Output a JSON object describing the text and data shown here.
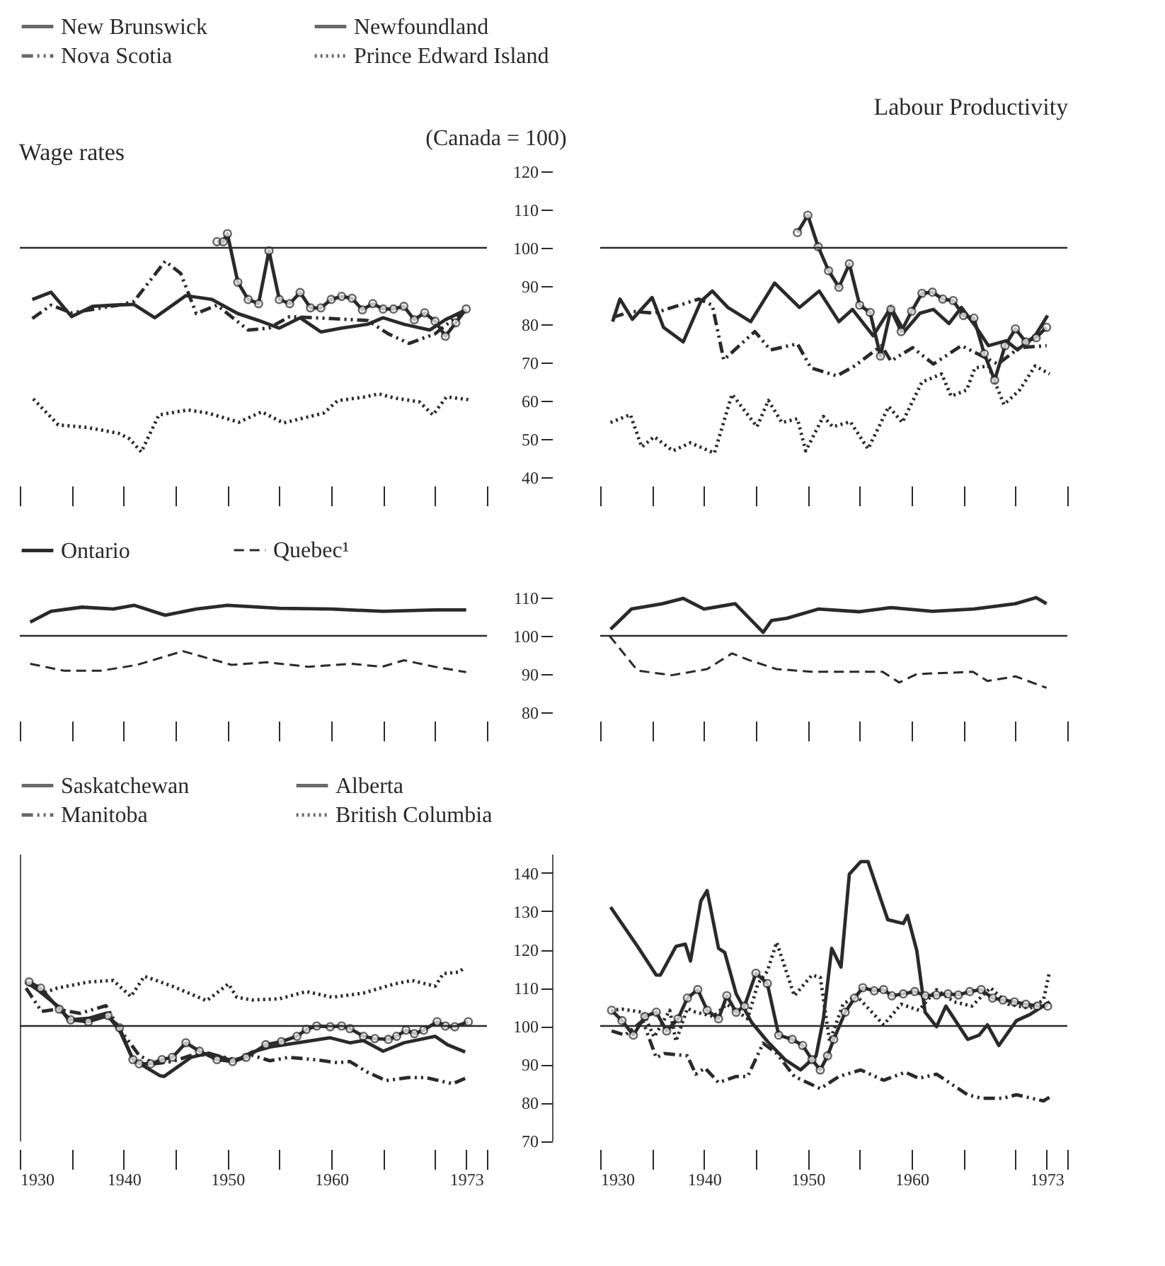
{
  "chart_data": [
    {
      "type": "line",
      "title": "Wage rates",
      "xlim": [
        1930,
        1975
      ],
      "ylim": [
        40,
        120
      ],
      "legend": "top",
      "tick_labels": false,
      "xticks": [
        1930,
        {
          "value": 1935,
          "label": null
        },
        1940,
        {
          "value": 1945,
          "label": null
        },
        1950,
        {
          "value": 1955,
          "label": null
        },
        1960,
        {
          "value": 1965,
          "label": null
        },
        {
          "value": 1970,
          "label": null
        },
        {
          "value": 1975,
          "label": null
        }
      ],
      "yticks": [
        40,
        50,
        60,
        70,
        80,
        90,
        100,
        110,
        120
      ],
      "ref_lines": [
        {
          "axis": "y",
          "value": 100
        }
      ],
      "series": [
        {
          "name": "New Brunswick",
          "color": "#2a2a2a",
          "line_style": "solid",
          "x": [
            1931.2,
            1933,
            1935,
            1937,
            1939,
            1941,
            1943,
            1946,
            1948.5,
            1951,
            1953,
            1955,
            1957,
            1959,
            1961,
            1963.5,
            1965,
            1967,
            1969.5,
            1971,
            1973
          ],
          "values": [
            86.5,
            88.4,
            82,
            84.7,
            85,
            85.2,
            81.7,
            87.5,
            86.5,
            82.8,
            81,
            79,
            81.7,
            78,
            79,
            80,
            81.7,
            80,
            78.5,
            81.2,
            83.8
          ]
        },
        {
          "name": "Newfoundland",
          "color": "#2a2a2a",
          "line_style": "solid",
          "marker": "circle",
          "x": [
            1949,
            1949.6,
            1950,
            1951,
            1952,
            1953,
            1954,
            1955,
            1956,
            1957,
            1958,
            1959,
            1960,
            1961,
            1962,
            1963,
            1964,
            1965,
            1966,
            1967,
            1968,
            1969,
            1970,
            1971,
            1972,
            1973
          ],
          "values": [
            101.6,
            101.6,
            103.7,
            91,
            86.5,
            85.4,
            99.2,
            86.5,
            85.4,
            88.3,
            84.3,
            84.3,
            86.5,
            87.3,
            86.8,
            83.8,
            85.4,
            84,
            84,
            84.7,
            81.2,
            83,
            80.8,
            76.9,
            80.4,
            84
          ]
        },
        {
          "name": "Nova Scotia",
          "color": "#2a2a2a",
          "line_style": "dashdot",
          "x": [
            1931.2,
            1933,
            1935,
            1939.5,
            1941,
            1944,
            1945.5,
            1947,
            1949,
            1952,
            1954,
            1956,
            1960,
            1963.5,
            1965.5,
            1967.5,
            1970,
            1971.7,
            1973
          ],
          "values": [
            81.5,
            85,
            83,
            85,
            86,
            96.5,
            93.3,
            82.8,
            85,
            78.5,
            79,
            82,
            81.5,
            81,
            77.5,
            75,
            77.5,
            81.2,
            83.8
          ]
        },
        {
          "name": "Prince Edward Island",
          "color": "#2a2a2a",
          "line_style": "dotted",
          "x": [
            1931.3,
            1933.7,
            1936.5,
            1939.5,
            1940.6,
            1941.7,
            1943.4,
            1946.2,
            1948.1,
            1951.1,
            1953.3,
            1955.4,
            1959.3,
            1960.6,
            1963.2,
            1964.6,
            1966.1,
            1968.5,
            1969.8,
            1971.1,
            1973.2
          ],
          "values": [
            60.5,
            53.7,
            53,
            51.5,
            50,
            46.6,
            56.3,
            57.6,
            56.8,
            54.4,
            57.1,
            54.2,
            56.8,
            60,
            61,
            61.8,
            60.7,
            59.7,
            56.3,
            61,
            60.3
          ]
        }
      ]
    },
    {
      "type": "line",
      "title": "Labour Productivity",
      "ylabel": "(Canada = 100)",
      "xlim": [
        1930,
        1975
      ],
      "ylim": [
        40,
        120
      ],
      "legend": "top",
      "tick_labels": "y",
      "xticks": [
        1930,
        {
          "value": 1935,
          "label": null
        },
        1940,
        {
          "value": 1945,
          "label": null
        },
        1950,
        {
          "value": 1955,
          "label": null
        },
        1960,
        {
          "value": 1965,
          "label": null
        },
        {
          "value": 1970,
          "label": null
        },
        {
          "value": 1975,
          "label": null
        }
      ],
      "yticks": [
        40,
        50,
        60,
        70,
        80,
        90,
        100,
        110,
        120
      ],
      "ref_lines": [
        {
          "axis": "y",
          "value": 100
        }
      ],
      "series": [
        {
          "name": "New Brunswick",
          "color": "#2a2a2a",
          "line_style": "solid",
          "x": [
            1931.2,
            1931.9,
            1933.1,
            1935,
            1936.1,
            1938,
            1939.7,
            1940.8,
            1942.3,
            1944.5,
            1946.8,
            1949.2,
            1951.1,
            1953,
            1954.3,
            1956.3,
            1958,
            1959.3,
            1960.8,
            1962.1,
            1963.6,
            1964.8,
            1966.1,
            1967.4,
            1969.1,
            1970.2,
            1971.9,
            1973.1
          ],
          "values": [
            80.7,
            86.6,
            81.3,
            87,
            79.2,
            75.4,
            86,
            88.7,
            84.4,
            80.7,
            90.8,
            84.4,
            88.7,
            80.7,
            83.9,
            77,
            84.4,
            78.1,
            82.9,
            83.9,
            80.2,
            84.4,
            79.7,
            74.4,
            75.7,
            73.3,
            77,
            82.3
          ]
        },
        {
          "name": "Newfoundland",
          "color": "#2a2a2a",
          "line_style": "solid",
          "marker": "circle",
          "x": [
            1949,
            1950,
            1951,
            1952,
            1953,
            1954,
            1955,
            1956,
            1957,
            1958,
            1959,
            1960,
            1961,
            1962,
            1963,
            1964,
            1965,
            1966,
            1967,
            1968,
            1969,
            1970,
            1971,
            1972,
            1973
          ],
          "values": [
            104,
            108.5,
            100.3,
            94,
            89.7,
            95.8,
            85,
            83.1,
            71.7,
            83.9,
            78.1,
            83.4,
            88.1,
            88.4,
            86.6,
            86.2,
            82.3,
            81.6,
            72.3,
            65.4,
            74.4,
            78.8,
            75.4,
            76.5,
            79.2
          ]
        },
        {
          "name": "Nova Scotia",
          "color": "#2a2a2a",
          "line_style": "dashdot",
          "x": [
            1931.2,
            1933.1,
            1935.2,
            1939.5,
            1940.8,
            1941.9,
            1944.9,
            1946.4,
            1949,
            1950.3,
            1952.8,
            1954.5,
            1957.1,
            1958,
            1960.1,
            1962.1,
            1964.8,
            1967,
            1968.3,
            1970.4,
            1973
          ],
          "values": [
            81.8,
            83.4,
            82.9,
            86.6,
            85,
            70.7,
            78.1,
            73.3,
            74.9,
            68.6,
            66.5,
            69.1,
            74.4,
            70.4,
            73.9,
            69.6,
            74.4,
            71.4,
            69.6,
            73.9,
            74.4
          ]
        },
        {
          "name": "Prince Edward Island",
          "color": "#2a2a2a",
          "line_style": "dotted",
          "x": [
            1931,
            1932.9,
            1934,
            1935.2,
            1937,
            1938.7,
            1941,
            1942.7,
            1945.1,
            1946.2,
            1947.5,
            1949,
            1949.8,
            1951.5,
            1952.4,
            1954.1,
            1955.8,
            1957.8,
            1959.1,
            1961,
            1962.9,
            1963.8,
            1965.3,
            1966.1,
            1967.4,
            1968.9,
            1970.4,
            1971.9,
            1973.3
          ],
          "values": [
            54.3,
            56.4,
            47.9,
            50.6,
            46.9,
            49,
            46.3,
            61.7,
            53.2,
            60.1,
            54.3,
            55.3,
            46.9,
            55.9,
            53.2,
            54.5,
            47.4,
            58.5,
            54.3,
            64.9,
            67,
            61.2,
            62.8,
            68.6,
            69.1,
            59,
            62.8,
            69.1,
            67
          ]
        }
      ]
    },
    {
      "type": "line",
      "xlim": [
        1930,
        1975
      ],
      "ylim": [
        80,
        110
      ],
      "legend": "top",
      "tick_labels": false,
      "xticks": [
        1930,
        {
          "value": 1935,
          "label": null
        },
        1940,
        {
          "value": 1945,
          "label": null
        },
        1950,
        {
          "value": 1955,
          "label": null
        },
        1960,
        {
          "value": 1965,
          "label": null
        },
        {
          "value": 1970,
          "label": null
        },
        {
          "value": 1975,
          "label": null
        }
      ],
      "yticks": [
        80,
        90,
        100,
        110
      ],
      "ref_lines": [
        {
          "axis": "y",
          "value": 100
        }
      ],
      "series": [
        {
          "name": "Ontario",
          "color": "#2a2a2a",
          "line_style": "solid",
          "x": [
            1931,
            1933,
            1936,
            1939,
            1941,
            1944,
            1947,
            1950,
            1955,
            1960,
            1965,
            1970,
            1973
          ],
          "values": [
            103.6,
            106.4,
            107.5,
            107,
            108,
            105.4,
            107,
            108,
            107.2,
            107,
            106.4,
            106.8,
            106.8
          ]
        },
        {
          "name": "Quebec¹",
          "color": "#2a2a2a",
          "line_style": "dashed",
          "x": [
            1931,
            1934.2,
            1937.9,
            1941.3,
            1945.7,
            1950.4,
            1953.8,
            1957.8,
            1961.9,
            1964.9,
            1967,
            1970,
            1973
          ],
          "values": [
            92.7,
            90.9,
            90.9,
            92.4,
            96,
            92.4,
            93.1,
            91.9,
            92.7,
            91.9,
            93.6,
            91.9,
            90.5
          ]
        }
      ]
    },
    {
      "type": "line",
      "xlim": [
        1930,
        1975
      ],
      "ylim": [
        80,
        110
      ],
      "legend": "top",
      "tick_labels": "y",
      "xticks": [
        1930,
        {
          "value": 1935,
          "label": null
        },
        1940,
        {
          "value": 1945,
          "label": null
        },
        1950,
        {
          "value": 1955,
          "label": null
        },
        1960,
        {
          "value": 1965,
          "label": null
        },
        {
          "value": 1970,
          "label": null
        },
        {
          "value": 1975,
          "label": null
        }
      ],
      "yticks": [
        80,
        90,
        100,
        110
      ],
      "ref_lines": [
        {
          "axis": "y",
          "value": 100
        }
      ],
      "series": [
        {
          "name": "Ontario",
          "color": "#2a2a2a",
          "line_style": "solid",
          "x": [
            1931,
            1933,
            1936,
            1938,
            1940,
            1943,
            1945.7,
            1946.5,
            1948,
            1951,
            1955,
            1958,
            1962,
            1966,
            1970,
            1972,
            1973
          ],
          "values": [
            101.7,
            107,
            108.4,
            109.8,
            107,
            108.4,
            100.9,
            104,
            104.6,
            107,
            106.3,
            107.4,
            106.4,
            107,
            108.4,
            110,
            108.4
          ]
        },
        {
          "name": "Quebec¹",
          "color": "#2a2a2a",
          "line_style": "dashed",
          "x": [
            1930.9,
            1933.6,
            1936.9,
            1940.3,
            1942.7,
            1944.4,
            1947,
            1950.4,
            1957.2,
            1958.8,
            1960.5,
            1965.9,
            1967.3,
            1970,
            1973
          ],
          "values": [
            100,
            90.9,
            89.7,
            91.3,
            95.4,
            93.6,
            91.3,
            90.6,
            90.6,
            87.8,
            90,
            90.6,
            88.2,
            89.4,
            86.4
          ]
        }
      ]
    },
    {
      "type": "line",
      "xlim": [
        1930,
        1975
      ],
      "ylim": [
        70,
        145
      ],
      "legend": "top",
      "tick_labels": "x",
      "xticks": [
        1930,
        {
          "value": 1935,
          "label": null
        },
        1940,
        {
          "value": 1945,
          "label": null
        },
        1950,
        {
          "value": 1955,
          "label": null
        },
        1960,
        {
          "value": 1965,
          "label": null
        },
        {
          "value": 1970,
          "label": null
        },
        1973,
        {
          "value": 1975,
          "label": null
        }
      ],
      "yticks": [
        70,
        80,
        90,
        100,
        110,
        120,
        130,
        140
      ],
      "ref_lines": [
        {
          "axis": "y",
          "value": 100
        }
      ],
      "series": [
        {
          "name": "Saskatchewan",
          "color": "#2a2a2a",
          "line_style": "solid",
          "x": [
            1930.6,
            1931.8,
            1933.8,
            1934.7,
            1936.6,
            1938.3,
            1939.6,
            1940.9,
            1943.5,
            1943.9,
            1946.5,
            1948.2,
            1950.7,
            1952.4,
            1954.1,
            1956.7,
            1959.9,
            1961.8,
            1963.1,
            1965,
            1967,
            1970,
            1971.2,
            1972.9
          ],
          "values": [
            111.5,
            109.3,
            104.9,
            101.6,
            102,
            103.3,
            98.9,
            91.2,
            87,
            86.8,
            91.8,
            92.9,
            90.7,
            93.2,
            94.5,
            95.6,
            96.9,
            95.6,
            96.2,
            93.4,
            95.6,
            97.3,
            95.1,
            93.2
          ]
        },
        {
          "name": "Alberta",
          "color": "#2a2a2a",
          "line_style": "solid",
          "marker": "circle",
          "x": [
            1930.9,
            1932,
            1933.8,
            1934.9,
            1936.6,
            1938.5,
            1939.6,
            1940.9,
            1941.5,
            1942.6,
            1943.7,
            1944.7,
            1946,
            1947.3,
            1949,
            1950.5,
            1951.8,
            1953.7,
            1955.2,
            1956.7,
            1957.6,
            1958.6,
            1959.9,
            1961,
            1961.8,
            1963.1,
            1964.2,
            1965.5,
            1966.3,
            1967.2,
            1968,
            1968.9,
            1970.2,
            1971,
            1971.9,
            1973.2
          ],
          "values": [
            111.5,
            109.9,
            104.4,
            101.6,
            101.1,
            102.7,
            99.5,
            91.2,
            90.1,
            90.1,
            91.2,
            91.8,
            95.6,
            93.4,
            91.2,
            90.7,
            91.8,
            95.1,
            95.9,
            97.3,
            99.1,
            100,
            99.8,
            100,
            99.3,
            97.3,
            96.7,
            96.5,
            97.3,
            98.9,
            98,
            98.9,
            101.1,
            100,
            99.8,
            101.1
          ]
        },
        {
          "name": "Manitoba",
          "color": "#2a2a2a",
          "line_style": "dashdot",
          "x": [
            1930.6,
            1932.1,
            1933.6,
            1935.8,
            1938.3,
            1939.4,
            1941.5,
            1943,
            1944.7,
            1946.5,
            1948.6,
            1950.7,
            1952.4,
            1954.1,
            1955.9,
            1958.4,
            1960.6,
            1961.8,
            1963.5,
            1965.3,
            1967.4,
            1969.1,
            1971.7,
            1972.9
          ],
          "values": [
            109.9,
            103.8,
            104.4,
            103.3,
            105.3,
            100,
            92.3,
            90.1,
            90.7,
            92.3,
            92.5,
            91.2,
            92.3,
            90.9,
            91.8,
            91.2,
            90.4,
            90.7,
            87.9,
            85.7,
            86.5,
            86.5,
            84.9,
            86.3
          ]
        },
        {
          "name": "British Columbia",
          "color": "#2a2a2a",
          "line_style": "dotted",
          "x": [
            1932.4,
            1933.6,
            1936.6,
            1939,
            1940.7,
            1942,
            1944.7,
            1948,
            1950.1,
            1950.9,
            1952.4,
            1955,
            1957.6,
            1960.1,
            1963.1,
            1966.1,
            1967.8,
            1970,
            1970.8,
            1972.3,
            1972.9
          ],
          "values": [
            108.8,
            109.9,
            111.5,
            111.9,
            107.7,
            113,
            110.4,
            106.6,
            111,
            107.5,
            106.8,
            107.1,
            109,
            107.5,
            108.6,
            111,
            111.9,
            110.4,
            113.7,
            114.1,
            115.4
          ]
        }
      ]
    },
    {
      "type": "line",
      "xlim": [
        1930,
        1975
      ],
      "ylim": [
        70,
        145
      ],
      "legend": "top",
      "xticks": [
        1930,
        {
          "value": 1935,
          "label": null
        },
        1940,
        {
          "value": 1945,
          "label": null
        },
        1950,
        {
          "value": 1955,
          "label": null
        },
        1960,
        {
          "value": 1965,
          "label": null
        },
        {
          "value": 1970,
          "label": null
        },
        1973,
        {
          "value": 1975,
          "label": null
        }
      ],
      "yticks": [
        70,
        80,
        90,
        100,
        110,
        120,
        130,
        140
      ],
      "ref_lines": [
        {
          "axis": "y",
          "value": 100
        }
      ],
      "series": [
        {
          "name": "Saskatchewan",
          "color": "#2a2a2a",
          "line_style": "solid",
          "x": [
            1931,
            1933.6,
            1935.4,
            1935.8,
            1937.3,
            1938.2,
            1938.7,
            1939.7,
            1940.3,
            1941.4,
            1942,
            1943.1,
            1944.6,
            1946.1,
            1947.8,
            1949.3,
            1950.8,
            1951.5,
            1952.3,
            1953.2,
            1954,
            1955.1,
            1955.8,
            1957.7,
            1959.2,
            1959.6,
            1960.5,
            1961.3,
            1962.4,
            1963.3,
            1965.4,
            1966.5,
            1967.3,
            1968.4,
            1970.1,
            1971.4,
            1973.3
          ],
          "values": [
            131.1,
            120.8,
            113.3,
            113.3,
            120.8,
            121.4,
            117,
            132.7,
            135.4,
            120.3,
            119.2,
            108.4,
            100.9,
            96,
            91.2,
            88.5,
            92.2,
            101.9,
            120.3,
            115.4,
            139.7,
            143,
            143,
            127.8,
            126.8,
            128.9,
            119.7,
            103.6,
            99.8,
            105.2,
            96.5,
            97.6,
            100.3,
            94.9,
            101.4,
            103,
            106.3
          ]
        },
        {
          "name": "Alberta",
          "color": "#2a2a2a",
          "line_style": "solid",
          "marker": "circle",
          "x": [
            1931.1,
            1932.1,
            1933.2,
            1934.3,
            1935.4,
            1936.4,
            1937.5,
            1938.4,
            1939.4,
            1940.3,
            1941.4,
            1942.2,
            1943.1,
            1943.9,
            1945,
            1946.1,
            1947.2,
            1948.5,
            1949.5,
            1950.4,
            1951.2,
            1951.9,
            1952.5,
            1953.6,
            1954.5,
            1955.3,
            1956.4,
            1957.3,
            1958.1,
            1959.2,
            1960.3,
            1961.3,
            1962.4,
            1963.5,
            1964.5,
            1965.6,
            1966.7,
            1967.8,
            1968.8,
            1969.9,
            1971,
            1972.1,
            1973.1
          ],
          "values": [
            104.1,
            101.4,
            97.6,
            102.5,
            103.6,
            98.7,
            101.9,
            107.3,
            109.5,
            104.1,
            101.9,
            107.9,
            103.6,
            105.2,
            113.8,
            111.1,
            97.6,
            96.5,
            94.9,
            91.2,
            88.5,
            92.2,
            96.5,
            103.6,
            107.3,
            110,
            109.2,
            109.5,
            107.9,
            108.4,
            109,
            107.9,
            108.1,
            108.4,
            108.1,
            109,
            109.5,
            107.3,
            106.8,
            106.3,
            105.7,
            105.2,
            105.2
          ]
        },
        {
          "name": "Manitoba",
          "color": "#2a2a2a",
          "line_style": "dashdot",
          "x": [
            1931.1,
            1932.4,
            1934.1,
            1935.4,
            1936.2,
            1938.4,
            1939.2,
            1940.1,
            1941.4,
            1943.1,
            1944.2,
            1945.7,
            1947,
            1948.7,
            1951.2,
            1953,
            1955.1,
            1957.3,
            1959.4,
            1960.7,
            1962.4,
            1965.4,
            1966.7,
            1968.8,
            1970.1,
            1972.7,
            1973.3
          ],
          "values": [
            98.7,
            97.6,
            101.4,
            91.7,
            92.8,
            92.2,
            87.4,
            89,
            85.2,
            86.8,
            86.8,
            95.5,
            92.8,
            86.8,
            83.6,
            86.8,
            88.5,
            85.8,
            87.9,
            86.3,
            87.4,
            82,
            81.1,
            81.1,
            82,
            80.4,
            81.4
          ]
        },
        {
          "name": "British Columbia",
          "color": "#2a2a2a",
          "line_style": "dotted",
          "x": [
            1931,
            1932.1,
            1934.1,
            1935.2,
            1936.7,
            1937.3,
            1938.4,
            1939.2,
            1940.9,
            1942.2,
            1944.2,
            1945.2,
            1946.1,
            1947,
            1948.7,
            1950.4,
            1951.2,
            1952.1,
            1953.4,
            1954.7,
            1957.3,
            1959,
            1960.7,
            1962.4,
            1964.1,
            1965.8,
            1967.6,
            1969.3,
            1971.4,
            1972.7,
            1973.3
          ],
          "values": [
            104.1,
            104.4,
            103.6,
            97.1,
            104.1,
            96,
            104.6,
            103.6,
            102.5,
            105.7,
            101.9,
            111.1,
            114.3,
            121.9,
            107.9,
            113.3,
            112.7,
            96,
            105.7,
            107.9,
            100.3,
            105.7,
            104.1,
            109.5,
            106.3,
            105.2,
            110,
            105.7,
            104.6,
            106.8,
            114.3
          ]
        }
      ]
    }
  ]
}
